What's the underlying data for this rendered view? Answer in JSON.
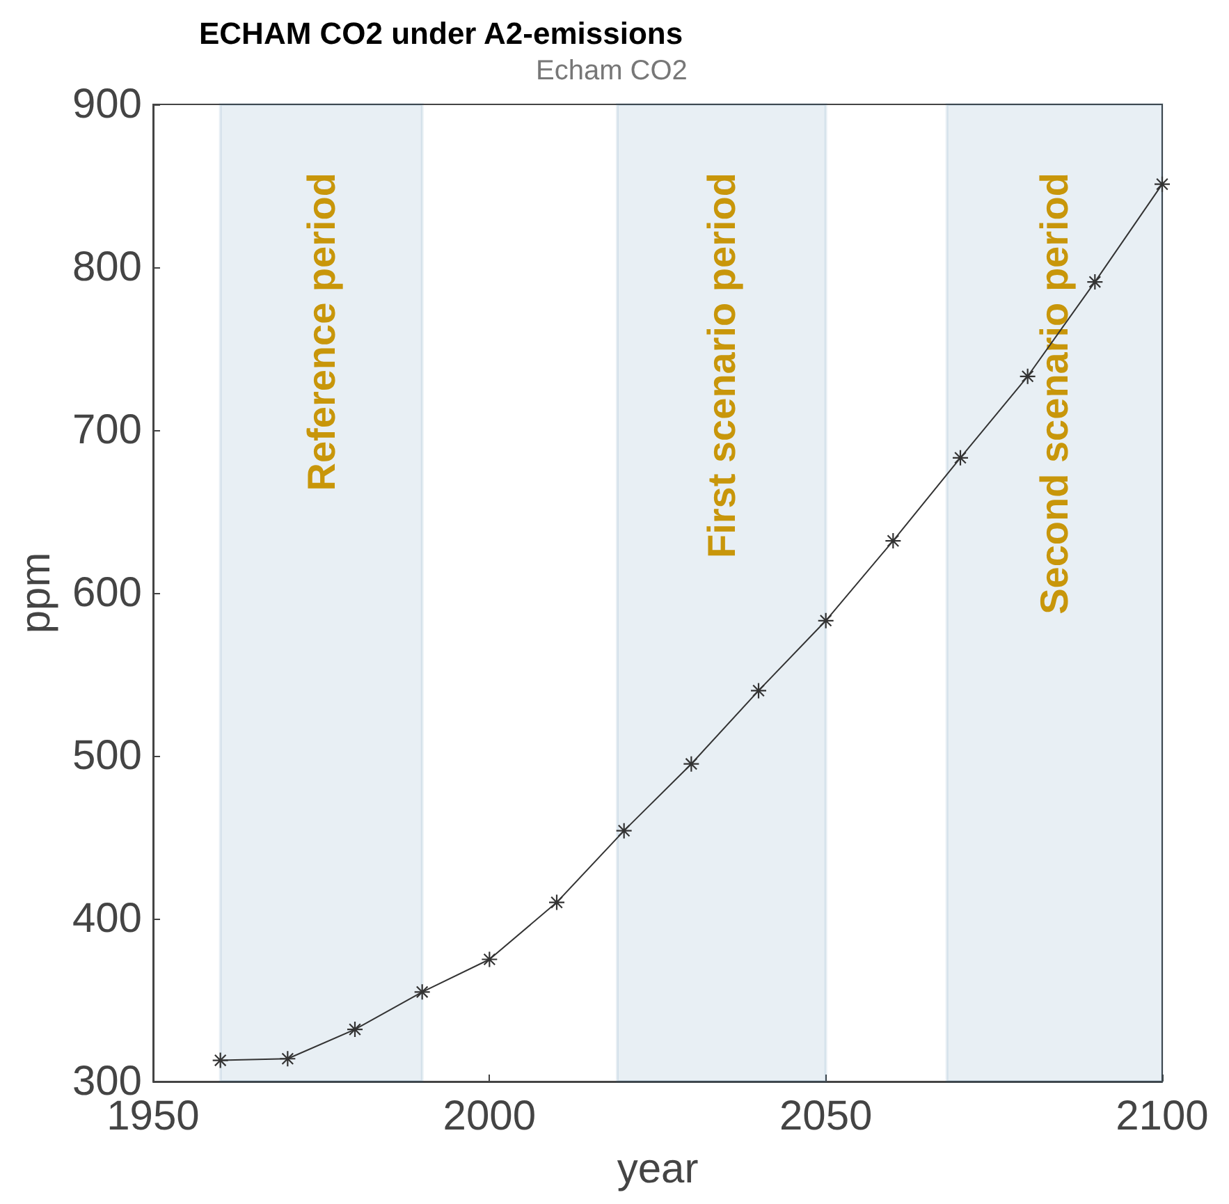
{
  "chart_data": {
    "type": "line",
    "title": "ECHAM CO2 under A2-emissions",
    "subtitle": "Echam CO2",
    "xlabel": "year",
    "ylabel": "ppm",
    "x": [
      1960,
      1970,
      1980,
      1990,
      2000,
      2010,
      2020,
      2030,
      2040,
      2050,
      2060,
      2070,
      2080,
      2090,
      2100
    ],
    "series": [
      {
        "color": "#333333",
        "values": [
          313,
          314,
          332,
          355,
          375,
          410,
          454,
          495,
          540,
          583,
          632,
          683,
          733,
          791,
          851
        ]
      }
    ],
    "xlim": [
      1950,
      2100
    ],
    "xticks": [
      1950,
      2000,
      2050,
      2100
    ],
    "ylim": [
      300,
      900
    ],
    "yticks": [
      300,
      400,
      500,
      600,
      700,
      800,
      900
    ],
    "bands": [
      {
        "axis": "x",
        "from": 1960,
        "to": 1990,
        "label": "Reference period",
        "color": "#1f6296"
      },
      {
        "axis": "x",
        "from": 2019,
        "to": 2050,
        "label": "First scenario period",
        "color": "#1f6296"
      },
      {
        "axis": "x",
        "from": 2068,
        "to": 2100,
        "label": "Second scenario period",
        "color": "#1f6296"
      }
    ],
    "grid": false,
    "marker": "star",
    "line_style": "solid"
  }
}
